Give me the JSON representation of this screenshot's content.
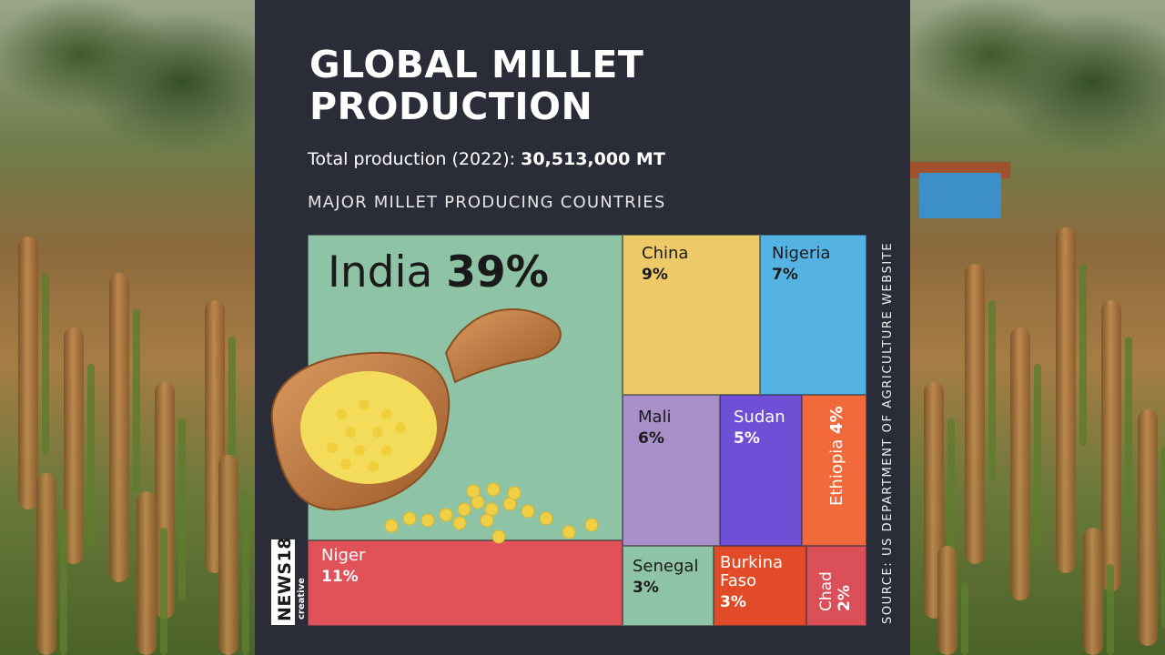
{
  "title": "GLOBAL MILLET PRODUCTION",
  "subtitle_prefix": "Total production (2022):",
  "subtitle_value": "30,513,000 MT",
  "section_label": "MAJOR MILLET PRODUCING COUNTRIES",
  "source": "SOURCE: US DEPARTMENT OF AGRICULTURE WEBSITE",
  "logo": {
    "main": "NEWS18",
    "sub": "creative"
  },
  "chart_data": {
    "type": "treemap",
    "title": "MAJOR MILLET PRODUCING COUNTRIES",
    "unit": "%",
    "items": [
      {
        "name": "India",
        "value": 39,
        "label": "39%",
        "color": "#8fc3a5"
      },
      {
        "name": "Niger",
        "value": 11,
        "label": "11%",
        "color": "#e05158"
      },
      {
        "name": "China",
        "value": 9,
        "label": "9%",
        "color": "#edc967"
      },
      {
        "name": "Nigeria",
        "value": 7,
        "label": "7%",
        "color": "#55b3e3"
      },
      {
        "name": "Mali",
        "value": 6,
        "label": "6%",
        "color": "#a98fc8"
      },
      {
        "name": "Sudan",
        "value": 5,
        "label": "5%",
        "color": "#6e4fd6"
      },
      {
        "name": "Ethiopia",
        "value": 4,
        "label": "4%",
        "color": "#f26a3b"
      },
      {
        "name": "Senegal",
        "value": 3,
        "label": "3%",
        "color": "#8fc3a5"
      },
      {
        "name": "Burkina Faso",
        "value": 3,
        "label": "3%",
        "color": "#e24b27"
      },
      {
        "name": "Chad",
        "value": 2,
        "label": "2%",
        "color": "#db5058"
      }
    ]
  }
}
